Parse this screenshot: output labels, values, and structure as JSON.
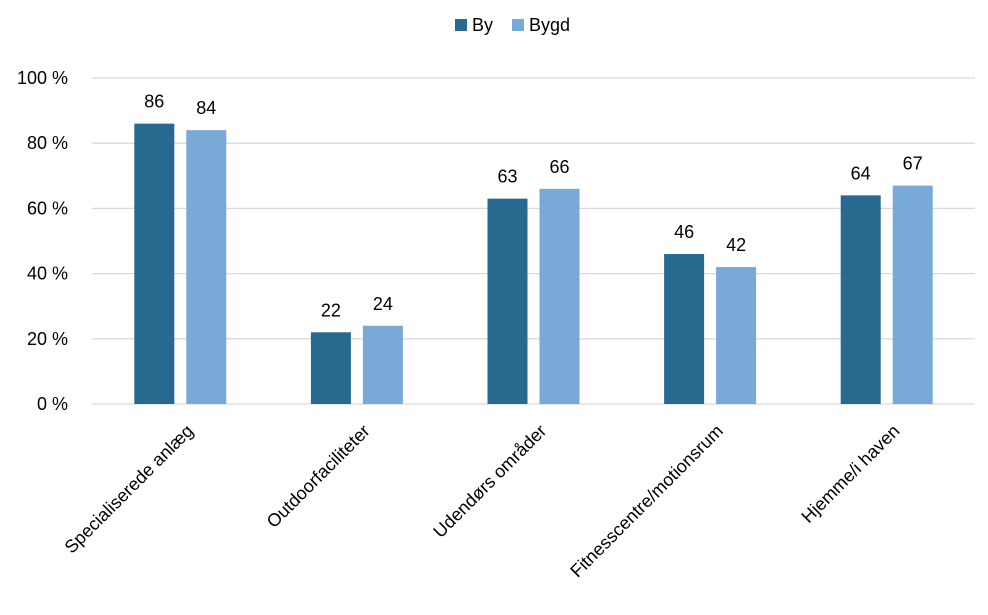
{
  "chart_data": {
    "type": "bar",
    "categories": [
      "Specialiserede anlæg",
      "Outdoorfaciliteter",
      "Udendørs områder",
      "Fitnesscentre/motionsrum",
      "Hjemme/i haven"
    ],
    "series": [
      {
        "name": "By",
        "values": [
          86,
          22,
          63,
          46,
          64
        ],
        "color": "#27698F"
      },
      {
        "name": "Bygd",
        "values": [
          84,
          24,
          66,
          42,
          67
        ],
        "color": "#79A9D6"
      }
    ],
    "ylim": [
      0,
      100
    ],
    "yticks": [
      0,
      20,
      40,
      60,
      80,
      100
    ],
    "ytick_suffix": " %",
    "legend_position": "top-center",
    "grid": true,
    "xlabel": "",
    "ylabel": "",
    "title": ""
  }
}
